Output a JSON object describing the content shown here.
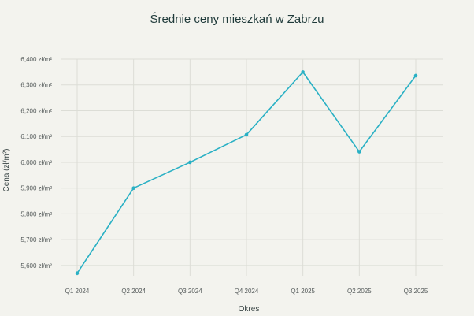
{
  "chart_data": {
    "type": "line",
    "title": "Średnie ceny mieszkań w Zabrzu",
    "xlabel": "Okres",
    "ylabel": "Cena (zł/m²)",
    "categories": [
      "Q1 2024",
      "Q2 2024",
      "Q3 2024",
      "Q4 2024",
      "Q1 2025",
      "Q2 2025",
      "Q3 2025"
    ],
    "y_ticks": [
      "5,600 zł/m²",
      "5,700 zł/m²",
      "5,800 zł/m²",
      "5,900 zł/m²",
      "6,000 zł/m²",
      "6,100 zł/m²",
      "6,200 zł/m²",
      "6,300 zł/m²",
      "6,400 zł/m²"
    ],
    "ylim": [
      5560,
      6400
    ],
    "y_tick_values": [
      5600,
      5700,
      5800,
      5900,
      6000,
      6100,
      6200,
      6300,
      6400
    ],
    "series": [
      {
        "values": [
          5570,
          5900,
          6000,
          6107,
          6350,
          6041,
          6336
        ]
      }
    ],
    "grid": true,
    "line_color": "#29b0c4"
  }
}
